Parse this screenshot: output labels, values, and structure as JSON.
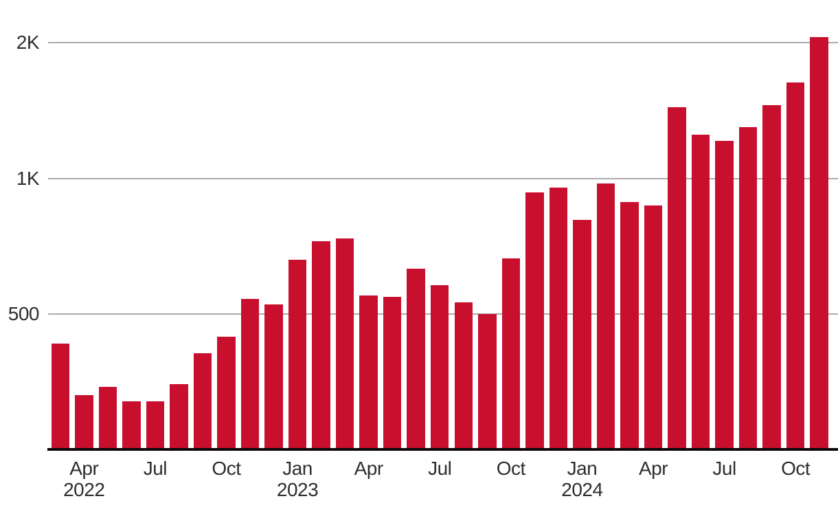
{
  "chart_data": {
    "type": "bar",
    "x": [
      "Mar 2022",
      "Apr 2022",
      "May 2022",
      "Jun 2022",
      "Jul 2022",
      "Aug 2022",
      "Sep 2022",
      "Oct 2022",
      "Nov 2022",
      "Dec 2022",
      "Jan 2023",
      "Feb 2023",
      "Mar 2023",
      "Apr 2023",
      "May 2023",
      "Jun 2023",
      "Jul 2023",
      "Aug 2023",
      "Sep 2023",
      "Oct 2023",
      "Nov 2023",
      "Dec 2023",
      "Jan 2024",
      "Feb 2024",
      "Mar 2024",
      "Apr 2024",
      "May 2024",
      "Jun 2024",
      "Jul 2024",
      "Aug 2024",
      "Sep 2024",
      "Oct 2024",
      "Nov 2024"
    ],
    "values": [
      430,
      330,
      345,
      320,
      320,
      350,
      410,
      445,
      540,
      525,
      660,
      725,
      735,
      550,
      545,
      630,
      580,
      530,
      500,
      665,
      930,
      955,
      810,
      975,
      885,
      870,
      1440,
      1250,
      1210,
      1300,
      1455,
      1630,
      2060
    ],
    "y_axis": {
      "scale": "log2",
      "baseline_value": 250,
      "ticks": [
        {
          "label": "500",
          "value": 500
        },
        {
          "label": "1K",
          "value": 1000
        },
        {
          "label": "2K",
          "value": 2000
        }
      ]
    },
    "x_axis": {
      "ticks": [
        {
          "index": 1,
          "label": "Apr",
          "sublabel": "2022"
        },
        {
          "index": 4,
          "label": "Jul"
        },
        {
          "index": 7,
          "label": "Oct"
        },
        {
          "index": 10,
          "label": "Jan",
          "sublabel": "2023"
        },
        {
          "index": 13,
          "label": "Apr"
        },
        {
          "index": 16,
          "label": "Jul"
        },
        {
          "index": 19,
          "label": "Oct"
        },
        {
          "index": 22,
          "label": "Jan",
          "sublabel": "2024"
        },
        {
          "index": 25,
          "label": "Apr"
        },
        {
          "index": 28,
          "label": "Jul"
        },
        {
          "index": 31,
          "label": "Oct"
        }
      ]
    },
    "legend": "none",
    "grid": "horizontal",
    "colors": {
      "bar": "#C8102E",
      "gridline": "#ABABAB",
      "axis_line": "#0A0A0A",
      "tick_text": "#2E2E2E",
      "background": "#FFFFFF"
    }
  }
}
